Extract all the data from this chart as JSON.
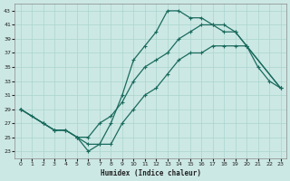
{
  "xlabel": "Humidex (Indice chaleur)",
  "background_color": "#cce8e4",
  "grid_color": "#aad4ce",
  "line_color": "#1a6b5e",
  "xlim": [
    -0.5,
    23.5
  ],
  "ylim": [
    22,
    44
  ],
  "xticks": [
    0,
    1,
    2,
    3,
    4,
    5,
    6,
    7,
    8,
    9,
    10,
    11,
    12,
    13,
    14,
    15,
    16,
    17,
    18,
    19,
    20,
    21,
    22,
    23
  ],
  "yticks": [
    23,
    25,
    27,
    29,
    31,
    33,
    35,
    37,
    39,
    41,
    43
  ],
  "line1_x": [
    0,
    1,
    2,
    3,
    4,
    5,
    6,
    7,
    8,
    9,
    10,
    11,
    12,
    13,
    14,
    15,
    16,
    17,
    18,
    19,
    20,
    21,
    22,
    23
  ],
  "line1_y": [
    29,
    28,
    27,
    26,
    26,
    25,
    23,
    24,
    27,
    31,
    36,
    38,
    40,
    43,
    43,
    42,
    42,
    41,
    40,
    40,
    38,
    35,
    33,
    32
  ],
  "line2_x": [
    0,
    2,
    3,
    4,
    5,
    6,
    7,
    8,
    9,
    10,
    11,
    12,
    13,
    14,
    15,
    16,
    17,
    18,
    19,
    20,
    21,
    22,
    23
  ],
  "line2_y": [
    29,
    27,
    26,
    26,
    25,
    25,
    27,
    28,
    30,
    33,
    35,
    36,
    37,
    39,
    40,
    41,
    41,
    41,
    40,
    38,
    null,
    null,
    32
  ],
  "line3_x": [
    0,
    2,
    3,
    4,
    5,
    6,
    7,
    8,
    9,
    10,
    11,
    12,
    13,
    14,
    15,
    16,
    17,
    18,
    19,
    20,
    21,
    22,
    23
  ],
  "line3_y": [
    29,
    27,
    26,
    26,
    25,
    24,
    24,
    24,
    27,
    29,
    31,
    32,
    34,
    36,
    37,
    37,
    38,
    38,
    38,
    38,
    null,
    null,
    32
  ]
}
